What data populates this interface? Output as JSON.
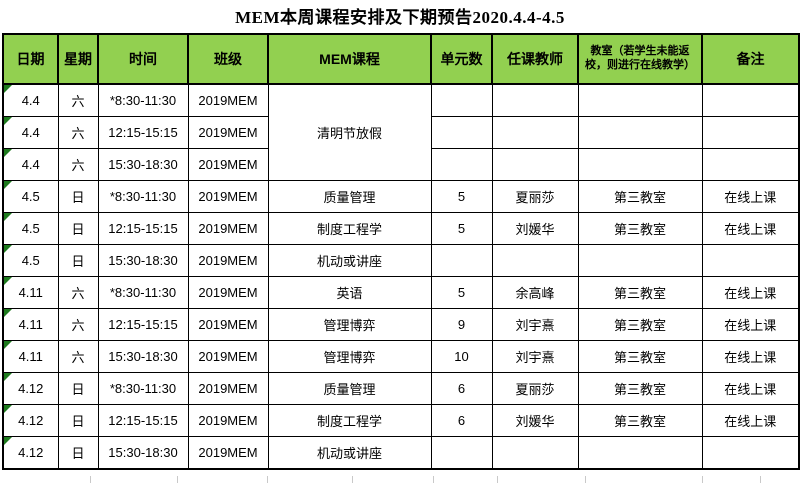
{
  "title": "MEM本周课程安排及下期预告2020.4.4-4.5",
  "colors": {
    "header_bg": "#92D050",
    "triangle": "#1e7a1e",
    "border_color": "#000000",
    "grid_stub": "#c9c9c9"
  },
  "icons": {
    "cell_error_indicator": "green-triangle"
  },
  "table": {
    "headers": [
      {
        "key": "date",
        "label": "日期"
      },
      {
        "key": "week",
        "label": "星期"
      },
      {
        "key": "time",
        "label": "时间"
      },
      {
        "key": "class",
        "label": "班级"
      },
      {
        "key": "course",
        "label": "MEM课程"
      },
      {
        "key": "units",
        "label": "单元数"
      },
      {
        "key": "teacher",
        "label": "任课教师"
      },
      {
        "key": "room",
        "label": "教室（若学生未能返校，则进行在线教学）",
        "small": true
      },
      {
        "key": "note",
        "label": "备注"
      }
    ],
    "rows": [
      {
        "date": "4.4",
        "week": "六",
        "time": "*8:30-11:30",
        "class": "2019MEM",
        "course": "清明节放假",
        "course_rowspan": 3,
        "units": "",
        "teacher": "",
        "room": "",
        "note": "",
        "has_indicator": true
      },
      {
        "date": "4.4",
        "week": "六",
        "time": "12:15-15:15",
        "class": "2019MEM",
        "course": null,
        "units": "",
        "teacher": "",
        "room": "",
        "note": "",
        "has_indicator": true
      },
      {
        "date": "4.4",
        "week": "六",
        "time": "15:30-18:30",
        "class": "2019MEM",
        "course": null,
        "units": "",
        "teacher": "",
        "room": "",
        "note": "",
        "has_indicator": true
      },
      {
        "date": "4.5",
        "week": "日",
        "time": "*8:30-11:30",
        "class": "2019MEM",
        "course": "质量管理",
        "units": "5",
        "teacher": "夏丽莎",
        "room": "第三教室",
        "note": "在线上课",
        "has_indicator": true
      },
      {
        "date": "4.5",
        "week": "日",
        "time": "12:15-15:15",
        "class": "2019MEM",
        "course": "制度工程学",
        "units": "5",
        "teacher": "刘媛华",
        "room": "第三教室",
        "note": "在线上课",
        "has_indicator": true
      },
      {
        "date": "4.5",
        "week": "日",
        "time": "15:30-18:30",
        "class": "2019MEM",
        "course": "机动或讲座",
        "units": "",
        "teacher": "",
        "room": "",
        "note": "",
        "has_indicator": true
      },
      {
        "date": "4.11",
        "week": "六",
        "time": "*8:30-11:30",
        "class": "2019MEM",
        "course": "英语",
        "units": "5",
        "teacher": "余高峰",
        "room": "第三教室",
        "note": "在线上课",
        "has_indicator": true
      },
      {
        "date": "4.11",
        "week": "六",
        "time": "12:15-15:15",
        "class": "2019MEM",
        "course": "管理博弈",
        "units": "9",
        "teacher": "刘宇熹",
        "room": "第三教室",
        "note": "在线上课",
        "has_indicator": true
      },
      {
        "date": "4.11",
        "week": "六",
        "time": "15:30-18:30",
        "class": "2019MEM",
        "course": "管理博弈",
        "units": "10",
        "teacher": "刘宇熹",
        "room": "第三教室",
        "note": "在线上课",
        "has_indicator": true
      },
      {
        "date": "4.12",
        "week": "日",
        "time": "*8:30-11:30",
        "class": "2019MEM",
        "course": "质量管理",
        "units": "6",
        "teacher": "夏丽莎",
        "room": "第三教室",
        "note": "在线上课",
        "has_indicator": true
      },
      {
        "date": "4.12",
        "week": "日",
        "time": "12:15-15:15",
        "class": "2019MEM",
        "course": "制度工程学",
        "units": "6",
        "teacher": "刘媛华",
        "room": "第三教室",
        "note": "在线上课",
        "has_indicator": true
      },
      {
        "date": "4.12",
        "week": "日",
        "time": "15:30-18:30",
        "class": "2019MEM",
        "course": "机动或讲座",
        "units": "",
        "teacher": "",
        "room": "",
        "note": "",
        "has_indicator": true
      }
    ]
  }
}
